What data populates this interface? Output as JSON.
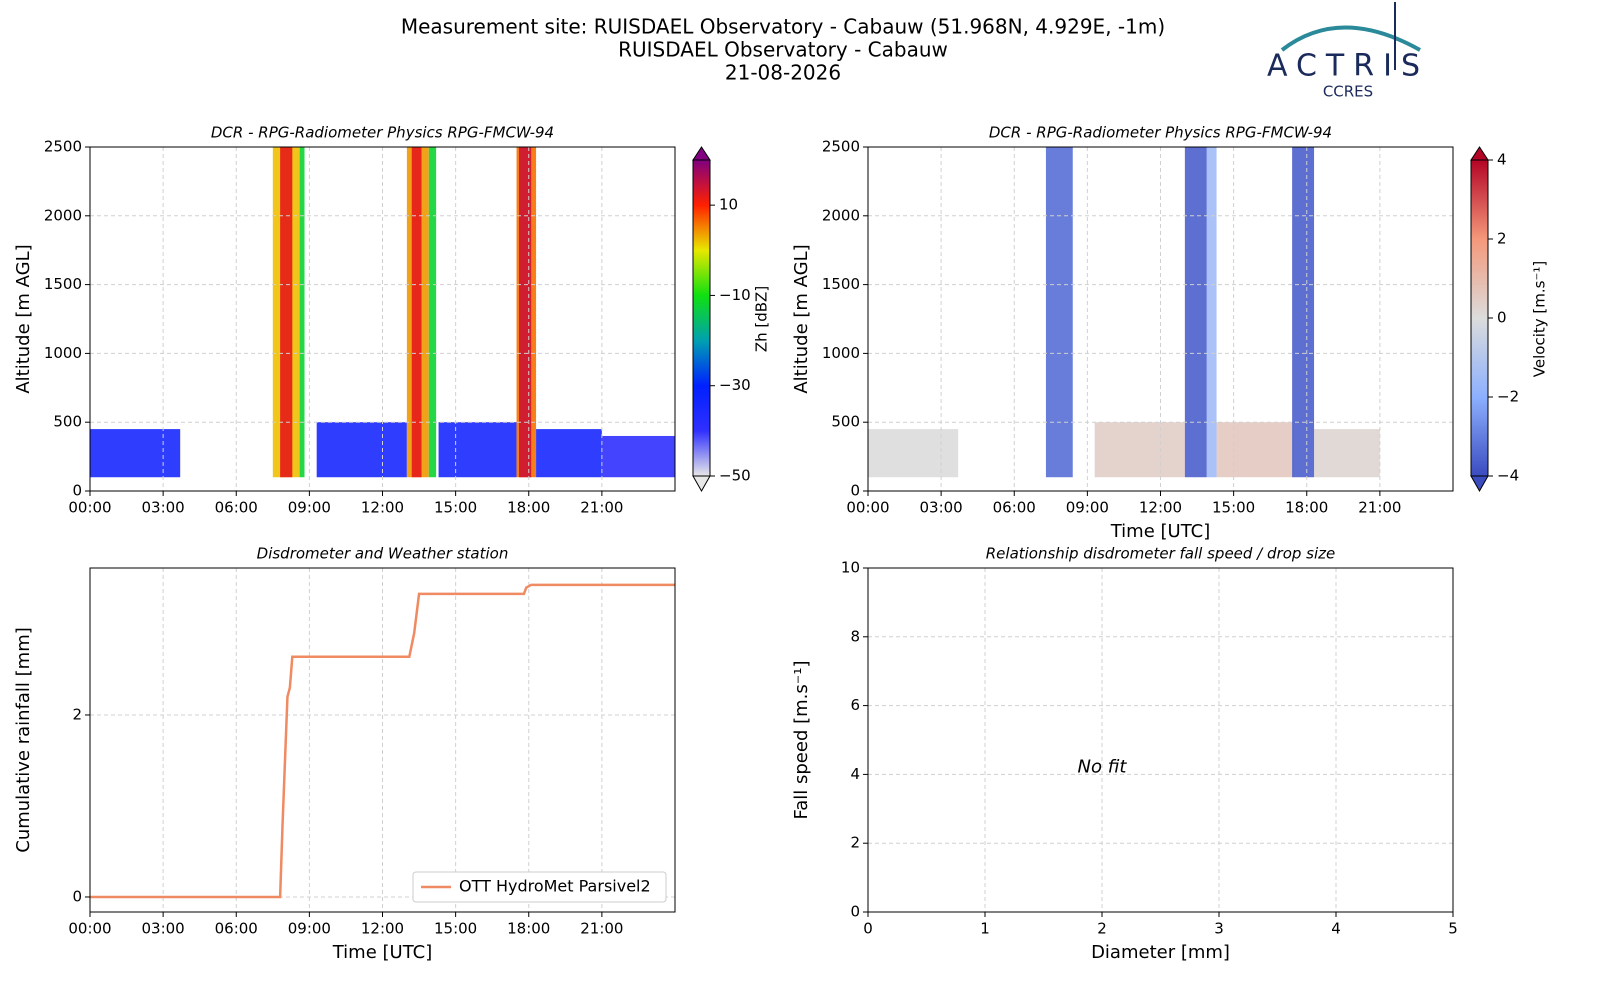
{
  "header": {
    "line1": "Measurement site: RUISDAEL Observatory - Cabauw (51.968N, 4.929E, -1m)",
    "line2": "RUISDAEL Observatory - Cabauw",
    "line3": "21-08-2026",
    "logo": "ACTRIS",
    "logo_sub": "CCRES"
  },
  "chart_data": [
    {
      "type": "heatmap",
      "title": "DCR - RPG-Radiometer Physics RPG-FMCW-94",
      "ylabel": "Altitude [m AGL]",
      "xlim": [
        0,
        24
      ],
      "ylim": [
        0,
        2500
      ],
      "xticks": [
        {
          "value": 0,
          "label": "00:00"
        },
        {
          "value": 3,
          "label": "03:00"
        },
        {
          "value": 6,
          "label": "06:00"
        },
        {
          "value": 9,
          "label": "09:00"
        },
        {
          "value": 12,
          "label": "12:00"
        },
        {
          "value": 15,
          "label": "15:00"
        },
        {
          "value": 18,
          "label": "18:00"
        },
        {
          "value": 21,
          "label": "21:00"
        }
      ],
      "yticks": [
        0,
        500,
        1000,
        1500,
        2000,
        2500
      ],
      "grid": true,
      "cells": [
        [
          0,
          3.7,
          100,
          450,
          -35
        ],
        [
          9.3,
          13.0,
          100,
          500,
          -35
        ],
        [
          14.3,
          17.5,
          100,
          500,
          -35
        ],
        [
          18.3,
          21.0,
          100,
          450,
          -35
        ],
        [
          21.0,
          24.0,
          100,
          400,
          -40
        ],
        [
          7.5,
          8.6,
          100,
          2500,
          2
        ],
        [
          7.8,
          8.3,
          100,
          2500,
          12
        ],
        [
          8.6,
          8.8,
          100,
          2500,
          -12
        ],
        [
          13.0,
          13.9,
          100,
          2500,
          4
        ],
        [
          13.2,
          13.6,
          100,
          2500,
          12
        ],
        [
          13.9,
          14.2,
          100,
          2500,
          -12
        ],
        [
          17.5,
          18.3,
          100,
          2500,
          6
        ],
        [
          17.6,
          18.1,
          100,
          2500,
          14
        ]
      ],
      "colorbar": {
        "label": "Zh [dBZ]",
        "lim": [
          -50,
          20
        ],
        "ticks": [
          10,
          {
            "value": -10,
            "label": "−10"
          },
          {
            "value": -30,
            "label": "−30"
          },
          {
            "value": -50,
            "label": "−50"
          }
        ],
        "colors": [
          "#e8e8e8",
          "#3030ff",
          "#0020ff",
          "#00a0b0",
          "#10e010",
          "#e8e800",
          "#ff2000",
          "#800080"
        ]
      }
    },
    {
      "type": "heatmap",
      "title": "DCR - RPG-Radiometer Physics RPG-FMCW-94",
      "xlabel": "Time [UTC]",
      "ylabel": "Altitude [m AGL]",
      "xlim": [
        0,
        24
      ],
      "ylim": [
        0,
        2500
      ],
      "xticks": [
        {
          "value": 0,
          "label": "00:00"
        },
        {
          "value": 3,
          "label": "03:00"
        },
        {
          "value": 6,
          "label": "06:00"
        },
        {
          "value": 9,
          "label": "09:00"
        },
        {
          "value": 12,
          "label": "12:00"
        },
        {
          "value": 15,
          "label": "15:00"
        },
        {
          "value": 18,
          "label": "18:00"
        },
        {
          "value": 21,
          "label": "21:00"
        }
      ],
      "yticks": [
        0,
        500,
        1000,
        1500,
        2000,
        2500
      ],
      "grid": true,
      "cells": [
        [
          0,
          3.7,
          100,
          450,
          0
        ],
        [
          9.3,
          13.0,
          100,
          500,
          0.4
        ],
        [
          14.3,
          17.5,
          100,
          500,
          0.6
        ],
        [
          18.3,
          21.0,
          100,
          450,
          0.2
        ],
        [
          7.3,
          8.4,
          100,
          2500,
          -3.3
        ],
        [
          13.0,
          13.9,
          100,
          2500,
          -3.6
        ],
        [
          13.9,
          14.3,
          100,
          2500,
          -1.5
        ],
        [
          17.4,
          18.3,
          100,
          2500,
          -3.6
        ]
      ],
      "colorbar": {
        "label": "Velocity [m.s⁻¹]",
        "lim": [
          -4,
          4
        ],
        "ticks": [
          4,
          2,
          0,
          {
            "value": -2,
            "label": "−2"
          },
          {
            "value": -4,
            "label": "−4"
          }
        ],
        "colors": [
          "#3b4cc0",
          "#8db0fe",
          "#dcdcdc",
          "#f4987a",
          "#b40426"
        ]
      }
    },
    {
      "type": "line",
      "title": "Disdrometer and Weather station",
      "xlabel": "Time [UTC]",
      "ylabel": "Cumulative rainfall [mm]",
      "xlim": [
        0,
        24
      ],
      "ylim": [
        -0.165,
        3.615
      ],
      "xticks": [
        {
          "value": 0,
          "label": "00:00"
        },
        {
          "value": 3,
          "label": "03:00"
        },
        {
          "value": 6,
          "label": "06:00"
        },
        {
          "value": 9,
          "label": "09:00"
        },
        {
          "value": 12,
          "label": "12:00"
        },
        {
          "value": 15,
          "label": "15:00"
        },
        {
          "value": 18,
          "label": "18:00"
        },
        {
          "value": 21,
          "label": "21:00"
        }
      ],
      "yticks": [
        0,
        2
      ],
      "grid": true,
      "legend": "lower right",
      "x": [
        0,
        7.8,
        7.9,
        8.1,
        8.2,
        8.3,
        13.1,
        13.3,
        13.5,
        17.8,
        17.9,
        18.1,
        24
      ],
      "series": [
        {
          "name": "OTT HydroMet Parsivel2",
          "color": "#ef8a62",
          "values": [
            0,
            0,
            0.8,
            2.2,
            2.3,
            2.64,
            2.64,
            2.9,
            3.33,
            3.33,
            3.4,
            3.43,
            3.43
          ]
        }
      ]
    },
    {
      "type": "scatter",
      "title": "Relationship disdrometer fall speed / drop size",
      "xlabel": "Diameter [mm]",
      "ylabel": "Fall speed [m.s⁻¹]",
      "xlim": [
        0,
        5
      ],
      "ylim": [
        0,
        10
      ],
      "xticks": [
        0,
        1,
        2,
        3,
        4,
        5
      ],
      "yticks": [
        0,
        2,
        4,
        6,
        8,
        10
      ],
      "grid": true,
      "annotation": "No fit"
    }
  ]
}
